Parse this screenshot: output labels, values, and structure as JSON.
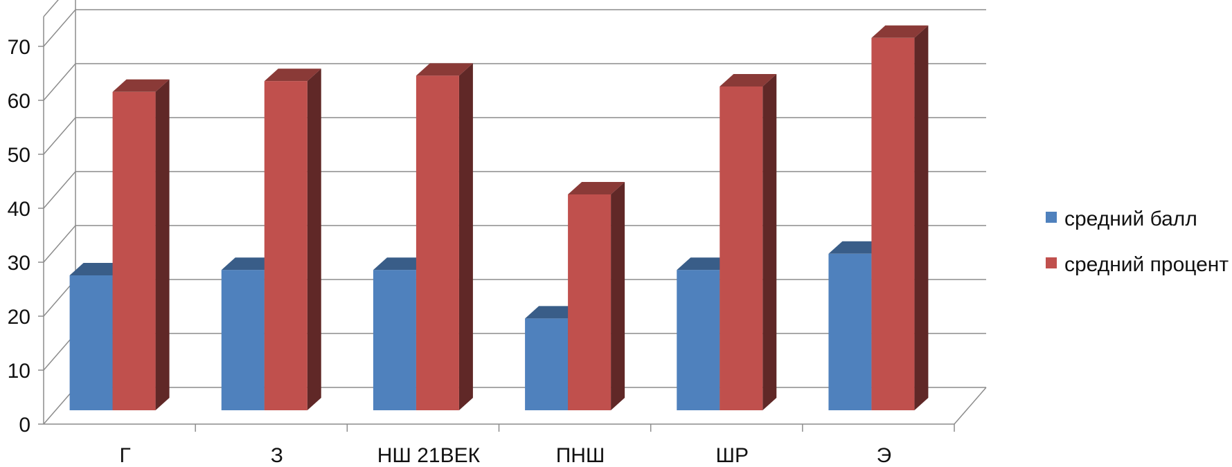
{
  "chart_data": {
    "type": "bar",
    "style": "3d-clustered-column",
    "categories": [
      "Г",
      "З",
      "НШ 21ВЕК",
      "ПНШ",
      "ШР",
      "Э"
    ],
    "series": [
      {
        "name": "средний балл",
        "values": [
          25,
          26,
          26,
          17,
          26,
          29
        ],
        "color": "#4f81bd"
      },
      {
        "name": "средний процент",
        "values": [
          59,
          61,
          62,
          40,
          60,
          69
        ],
        "color": "#c0504d"
      }
    ],
    "yticks": [
      "0",
      "10",
      "20",
      "30",
      "40",
      "50",
      "60",
      "70"
    ],
    "ylim": [
      0,
      70
    ],
    "grid": true,
    "legend_position": "right"
  }
}
